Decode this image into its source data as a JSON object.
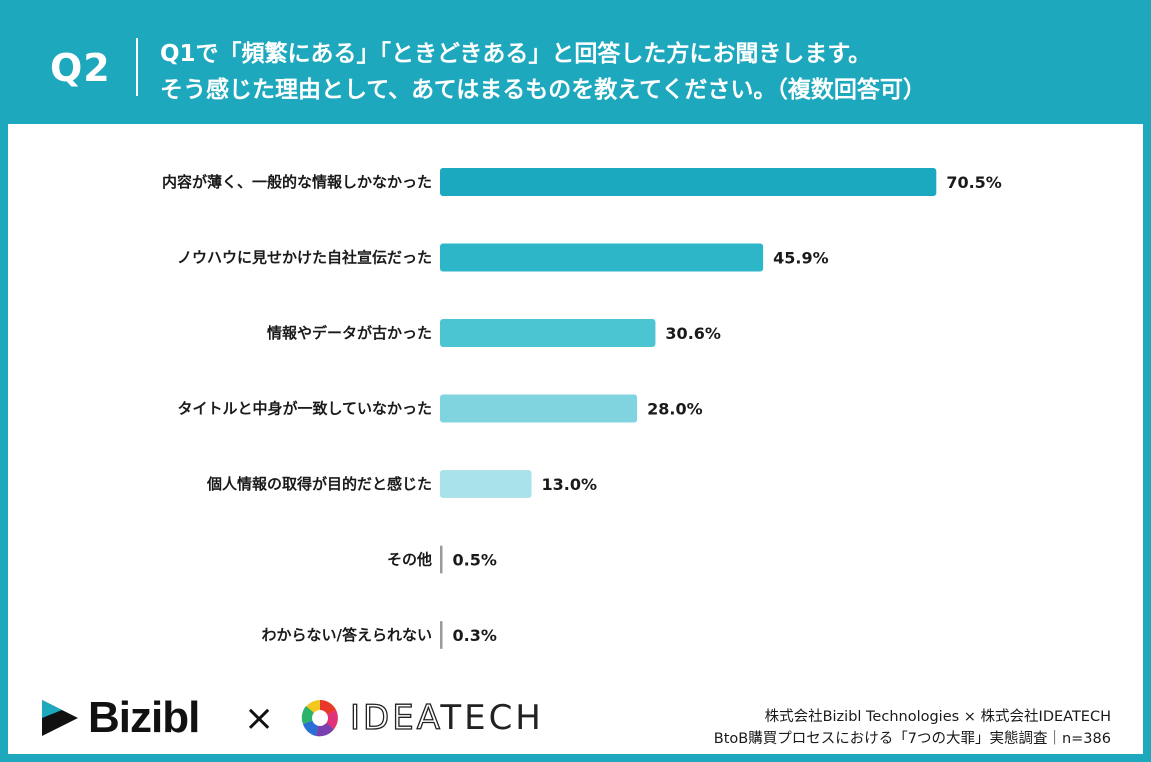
{
  "header": {
    "q_label": "Q2",
    "question_line1": "Q1で「頻繁にある」「ときどきある」と回答した方にお聞きします。",
    "question_line2": "そう感じた理由として、あてはまるものを教えてください。（複数回答可）"
  },
  "chart_data": {
    "type": "bar",
    "orientation": "horizontal",
    "categories": [
      "内容が薄く、一般的な情報しかなかった",
      "ノウハウに見せかけた自社宣伝だった",
      "情報やデータが古かった",
      "タイトルと中身が一致していなかった",
      "個人情報の取得が目的だと感じた",
      "その他",
      "わからない/答えられない"
    ],
    "values": [
      70.5,
      45.9,
      30.6,
      28.0,
      13.0,
      0.5,
      0.3
    ],
    "value_labels": [
      "70.5%",
      "45.9%",
      "30.6%",
      "28.0%",
      "13.0%",
      "0.5%",
      "0.3%"
    ],
    "unit": "%",
    "xlim": [
      0,
      75
    ],
    "colors": [
      "#1aa9bf",
      "#2cb6c8",
      "#4cc5d3",
      "#7fd4df",
      "#a9e2e9",
      "#9a9a9a",
      "#9a9a9a"
    ],
    "grid": false
  },
  "footer": {
    "brand1": "Bizibl",
    "times": "×",
    "brand2_outline": "IDEA",
    "brand2_solid": "TECH",
    "source_line1": "株式会社Bizibl Technologies × 株式会社IDEATECH",
    "source_line2": "BtoB購買プロセスにおける「7つの大罪」実態調査｜n=386"
  }
}
